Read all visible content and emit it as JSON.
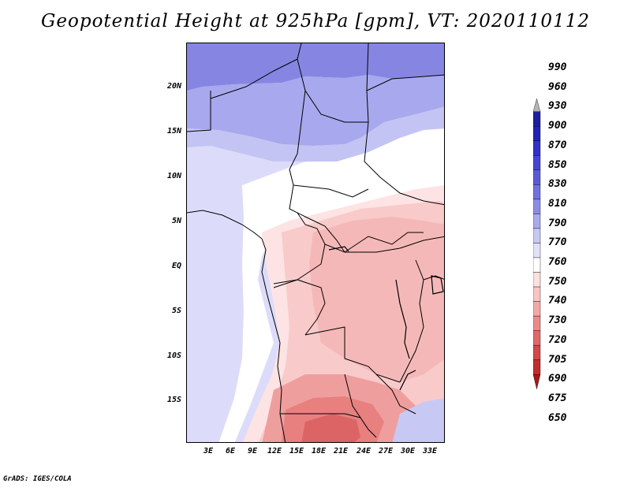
{
  "title": "Geopotential Height at 925hPa [gpm], VT: 2020110112",
  "credit": "GrADS: IGES/COLA",
  "map": {
    "region": "Central Africa",
    "lat_labels": [
      "20N",
      "15N",
      "10N",
      "5N",
      "EQ",
      "5S",
      "10S",
      "15S"
    ],
    "lon_labels": [
      "3E",
      "6E",
      "9E",
      "12E",
      "15E",
      "18E",
      "21E",
      "24E",
      "27E",
      "30E",
      "33E"
    ]
  },
  "colorbar": {
    "levels": [
      "990",
      "960",
      "930",
      "900",
      "870",
      "850",
      "830",
      "810",
      "790",
      "770",
      "760",
      "750",
      "740",
      "730",
      "720",
      "705",
      "690",
      "675",
      "650"
    ],
    "top_color": "#b4b4b4",
    "colors": [
      "#1e1ea0",
      "#2323b4",
      "#3232c8",
      "#4646d2",
      "#5a5ad7",
      "#7272df",
      "#8c8ce6",
      "#aaaaee",
      "#c8c8f5",
      "#e1e1fa",
      "#ffffff",
      "#fde1e1",
      "#f9c4c4",
      "#f3a8a8",
      "#ec8a8a",
      "#e26868",
      "#d44848",
      "#c22e2e",
      "#a81818"
    ]
  }
}
